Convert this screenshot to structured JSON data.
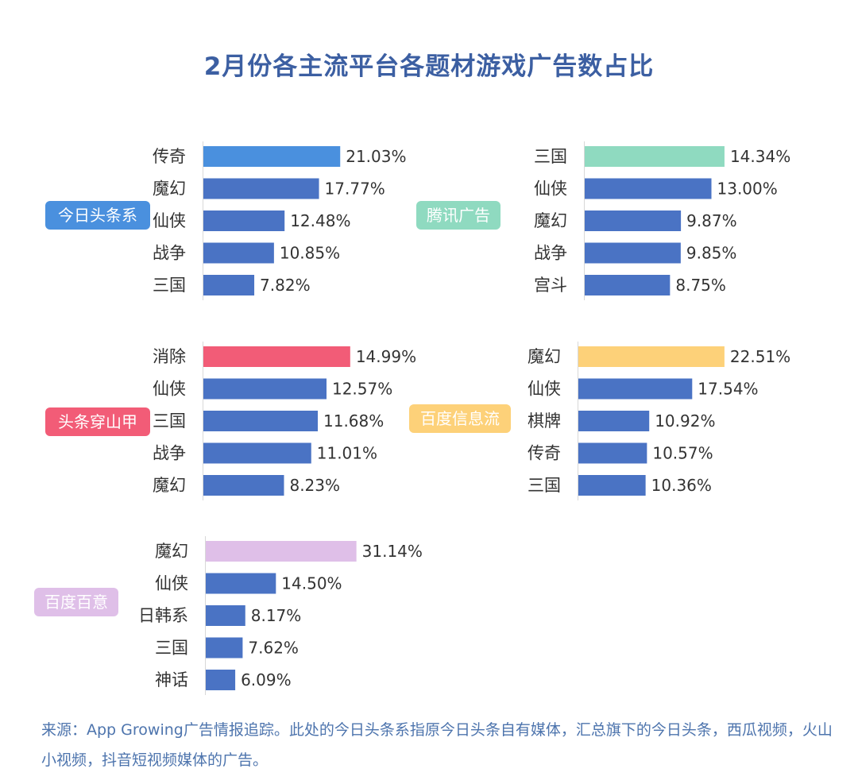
{
  "title": "2月份各主流平台各题材游戏广告数占比",
  "note": "来源：App Growing广告情报追踪。此处的今日头条系指原今日头条自有媒体，汇总旗下的今日头条，西瓜视频，火山小视频，抖音短视频媒体的广告。",
  "colors": {
    "bar_default": "#4a73c4"
  },
  "chart_data": [
    {
      "type": "bar",
      "orientation": "horizontal",
      "platform": "今日头条系",
      "accent": "#4a90de",
      "categories": [
        "传奇",
        "魔幻",
        "仙侠",
        "战争",
        "三国"
      ],
      "values": [
        21.03,
        17.77,
        12.48,
        10.85,
        7.82
      ],
      "labels": [
        "21.03%",
        "17.77%",
        "12.48%",
        "10.85%",
        "7.82%"
      ]
    },
    {
      "type": "bar",
      "orientation": "horizontal",
      "platform": "腾讯广告",
      "accent": "#8fdac0",
      "categories": [
        "三国",
        "仙侠",
        "魔幻",
        "战争",
        "宫斗"
      ],
      "values": [
        14.34,
        13.0,
        9.87,
        9.85,
        8.75
      ],
      "labels": [
        "14.34%",
        "13.00%",
        "9.87%",
        "9.85%",
        "8.75%"
      ]
    },
    {
      "type": "bar",
      "orientation": "horizontal",
      "platform": "头条穿山甲",
      "accent": "#f25c77",
      "categories": [
        "消除",
        "仙侠",
        "三国",
        "战争",
        "魔幻"
      ],
      "values": [
        14.99,
        12.57,
        11.68,
        11.01,
        8.23
      ],
      "labels": [
        "14.99%",
        "12.57%",
        "11.68%",
        "11.01%",
        "8.23%"
      ]
    },
    {
      "type": "bar",
      "orientation": "horizontal",
      "platform": "百度信息流",
      "accent": "#fdd179",
      "categories": [
        "魔幻",
        "仙侠",
        "棋牌",
        "传奇",
        "三国"
      ],
      "values": [
        22.51,
        17.54,
        10.92,
        10.57,
        10.36
      ],
      "labels": [
        "22.51%",
        "17.54%",
        "10.92%",
        "10.57%",
        "10.36%"
      ]
    },
    {
      "type": "bar",
      "orientation": "horizontal",
      "platform": "百度百意",
      "accent": "#dfbfe8",
      "categories": [
        "魔幻",
        "仙侠",
        "日韩系",
        "三国",
        "神话"
      ],
      "values": [
        31.14,
        14.5,
        8.17,
        7.62,
        6.09
      ],
      "labels": [
        "31.14%",
        "14.50%",
        "8.17%",
        "7.62%",
        "6.09%"
      ]
    }
  ]
}
